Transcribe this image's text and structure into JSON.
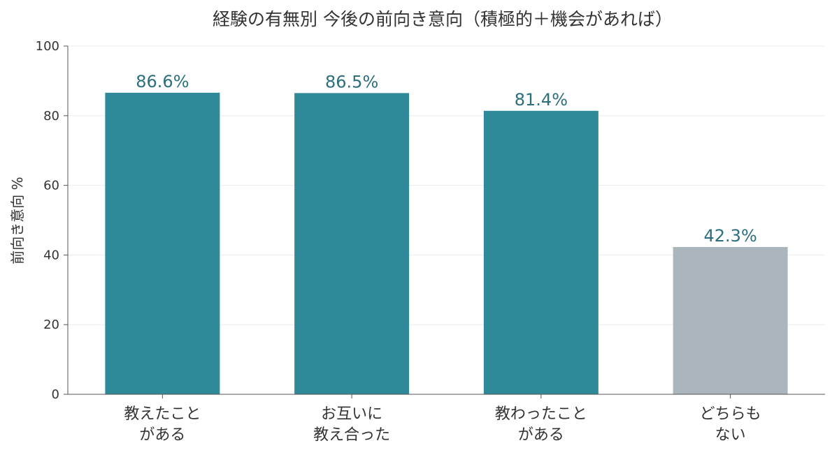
{
  "chart_data": {
    "type": "bar",
    "title": "経験の有無別 今後の前向き意向（積極的＋機会があれば）",
    "xlabel": "",
    "ylabel": "前向き意向 %",
    "ylim": [
      0,
      100
    ],
    "yticks": [
      0,
      20,
      40,
      60,
      80,
      100
    ],
    "grid": true,
    "categories": [
      [
        "教えたこと",
        "がある"
      ],
      [
        "お互いに",
        "教え合った"
      ],
      [
        "教わったこと",
        "がある"
      ],
      [
        "どちらも",
        "ない"
      ]
    ],
    "values": [
      86.6,
      86.5,
      81.4,
      42.3
    ],
    "data_labels": [
      "86.6%",
      "86.5%",
      "81.4%",
      "42.3%"
    ],
    "bar_colors": [
      "#2e8a99",
      "#2e8a99",
      "#2e8a99",
      "#abb6bc"
    ],
    "label_color": "#2b6f7e"
  }
}
